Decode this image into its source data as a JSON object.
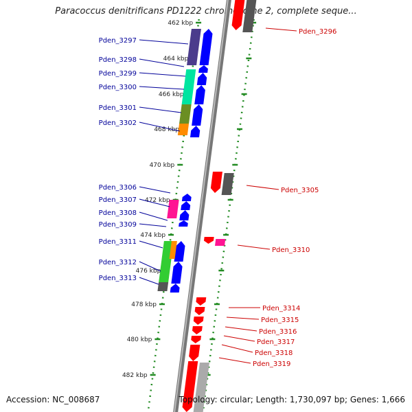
{
  "title": "Paracoccus denitrificans PD1222 chromosome 2, complete seque...",
  "footer": {
    "accession": "Accession: NC_008687",
    "topology": "Topology: circular; Length: 1,730,097 bp; Genes: 1,666"
  },
  "colors": {
    "forward_strand": "#0000ff",
    "reverse_strand": "#ff0000",
    "backbone": "#888888",
    "tick_dots": "#228b22",
    "label_left": "#000099",
    "label_right": "#cc0000"
  },
  "kbp_ticks": [
    {
      "kbp": "462 kbp"
    },
    {
      "kbp": "464 kbp"
    },
    {
      "kbp": "466 kbp"
    },
    {
      "kbp": "468 kbp"
    },
    {
      "kbp": "470 kbp"
    },
    {
      "kbp": "472 kbp"
    },
    {
      "kbp": "474 kbp"
    },
    {
      "kbp": "476 kbp"
    },
    {
      "kbp": "478 kbp"
    },
    {
      "kbp": "480 kbp"
    },
    {
      "kbp": "482 kbp"
    }
  ],
  "genes_left": [
    {
      "name": "Pden_3297"
    },
    {
      "name": "Pden_3298"
    },
    {
      "name": "Pden_3299"
    },
    {
      "name": "Pden_3300"
    },
    {
      "name": "Pden_3301"
    },
    {
      "name": "Pden_3302"
    },
    {
      "name": "Pden_3306"
    },
    {
      "name": "Pden_3307"
    },
    {
      "name": "Pden_3308"
    },
    {
      "name": "Pden_3309"
    },
    {
      "name": "Pden_3311"
    },
    {
      "name": "Pden_3312"
    },
    {
      "name": "Pden_3313"
    }
  ],
  "genes_right": [
    {
      "name": "Pden_3296"
    },
    {
      "name": "Pden_3305"
    },
    {
      "name": "Pden_3310"
    },
    {
      "name": "Pden_3314"
    },
    {
      "name": "Pden_3315"
    },
    {
      "name": "Pden_3316"
    },
    {
      "name": "Pden_3317"
    },
    {
      "name": "Pden_3318"
    },
    {
      "name": "Pden_3319"
    }
  ],
  "cog_colors": [
    "#4b3c8c",
    "#00e5a0",
    "#6b8e23",
    "#ff8c00",
    "#ff1493",
    "#32cd32",
    "#555555",
    "#aaaaaa"
  ]
}
